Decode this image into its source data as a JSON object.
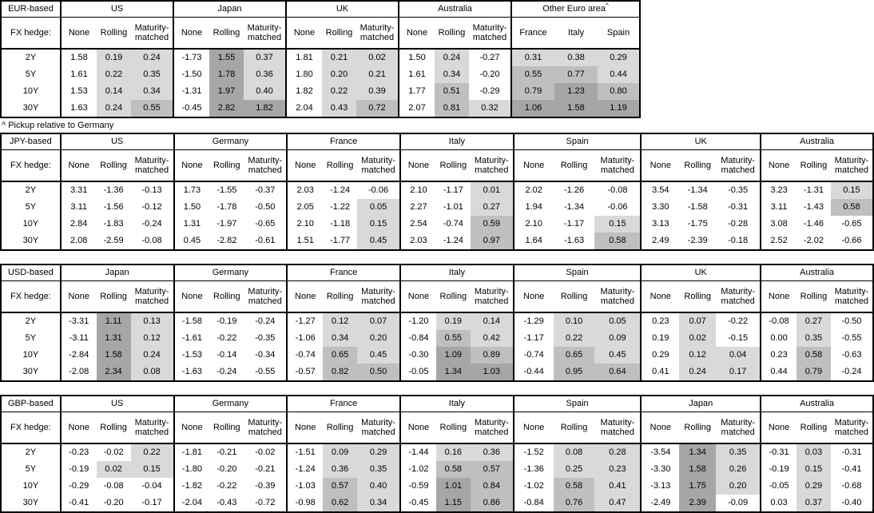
{
  "footnote": "^ Pickup relative to Germany",
  "fx_hedge_label": "FX hedge:",
  "row_labels": [
    "2Y",
    "5Y",
    "10Y",
    "30Y"
  ],
  "hedge_columns": [
    "None",
    "Rolling",
    "Maturity-matched"
  ],
  "shade_colors": {
    "low": "#d9d9d9",
    "mid": "#bfbfbf",
    "high": "#a6a6a6"
  },
  "shade_thresholds": {
    "low_min": 0,
    "mid_min": 0.5,
    "high_min": 1.0
  },
  "tables": [
    {
      "base": "EUR-based",
      "groups": [
        {
          "name": "US",
          "type": "hedge",
          "rows": [
            [
              "1.58",
              "0.19",
              "0.24"
            ],
            [
              "1.61",
              "0.22",
              "0.35"
            ],
            [
              "1.53",
              "0.14",
              "0.34"
            ],
            [
              "1.63",
              "0.24",
              "0.55"
            ]
          ]
        },
        {
          "name": "Japan",
          "type": "hedge",
          "rows": [
            [
              "-1.73",
              "1.55",
              "0.37"
            ],
            [
              "-1.50",
              "1.78",
              "0.36"
            ],
            [
              "-1.31",
              "1.97",
              "0.40"
            ],
            [
              "-0.45",
              "2.82",
              "1.82"
            ]
          ]
        },
        {
          "name": "UK",
          "type": "hedge",
          "rows": [
            [
              "1.81",
              "0.21",
              "0.02"
            ],
            [
              "1.80",
              "0.20",
              "0.21"
            ],
            [
              "1.82",
              "0.22",
              "0.39"
            ],
            [
              "2.04",
              "0.43",
              "0.72"
            ]
          ]
        },
        {
          "name": "Australia",
          "type": "hedge",
          "rows": [
            [
              "1.50",
              "0.24",
              "-0.27"
            ],
            [
              "1.61",
              "0.34",
              "-0.20"
            ],
            [
              "1.77",
              "0.51",
              "-0.29"
            ],
            [
              "2.07",
              "0.81",
              "0.32"
            ]
          ]
        },
        {
          "name": "Other Euro area",
          "sup": "^",
          "type": "pickup",
          "columns": [
            "France",
            "Italy",
            "Spain"
          ],
          "rows": [
            [
              "0.31",
              "0.38",
              "0.29"
            ],
            [
              "0.55",
              "0.77",
              "0.44"
            ],
            [
              "0.79",
              "1.23",
              "0.80"
            ],
            [
              "1.06",
              "1.58",
              "1.19"
            ]
          ]
        }
      ]
    },
    {
      "base": "JPY-based",
      "groups": [
        {
          "name": "US",
          "type": "hedge",
          "rows": [
            [
              "3.31",
              "-1.36",
              "-0.13"
            ],
            [
              "3.11",
              "-1.56",
              "-0.12"
            ],
            [
              "2.84",
              "-1.83",
              "-0.24"
            ],
            [
              "2.08",
              "-2.59",
              "-0.08"
            ]
          ]
        },
        {
          "name": "Germany",
          "type": "hedge",
          "rows": [
            [
              "1.73",
              "-1.55",
              "-0.37"
            ],
            [
              "1.50",
              "-1.78",
              "-0.50"
            ],
            [
              "1.31",
              "-1.97",
              "-0.65"
            ],
            [
              "0.45",
              "-2.82",
              "-0.61"
            ]
          ]
        },
        {
          "name": "France",
          "type": "hedge",
          "rows": [
            [
              "2.03",
              "-1.24",
              "-0.06"
            ],
            [
              "2.05",
              "-1.22",
              "0.05"
            ],
            [
              "2.10",
              "-1.18",
              "0.15"
            ],
            [
              "1.51",
              "-1.77",
              "0.45"
            ]
          ]
        },
        {
          "name": "Italy",
          "type": "hedge",
          "rows": [
            [
              "2.10",
              "-1.17",
              "0.01"
            ],
            [
              "2.27",
              "-1.01",
              "0.27"
            ],
            [
              "2.54",
              "-0.74",
              "0.59"
            ],
            [
              "2.03",
              "-1.24",
              "0.97"
            ]
          ]
        },
        {
          "name": "Spain",
          "type": "hedge",
          "rows": [
            [
              "2.02",
              "-1.26",
              "-0.08"
            ],
            [
              "1.94",
              "-1.34",
              "-0.06"
            ],
            [
              "2.10",
              "-1.17",
              "0.15"
            ],
            [
              "1.64",
              "-1.63",
              "0.58"
            ]
          ]
        },
        {
          "name": "UK",
          "type": "hedge",
          "rows": [
            [
              "3.54",
              "-1.34",
              "-0.35"
            ],
            [
              "3.30",
              "-1.58",
              "-0.31"
            ],
            [
              "3.13",
              "-1.75",
              "-0.28"
            ],
            [
              "2.49",
              "-2.39",
              "-0.18"
            ]
          ]
        },
        {
          "name": "Australia",
          "type": "hedge",
          "rows": [
            [
              "3.23",
              "-1.31",
              "0.15"
            ],
            [
              "3.11",
              "-1.43",
              "0.58"
            ],
            [
              "3.08",
              "-1.46",
              "-0.65"
            ],
            [
              "2.52",
              "-2.02",
              "-0.66"
            ]
          ]
        }
      ]
    },
    {
      "base": "USD-based",
      "groups": [
        {
          "name": "Japan",
          "type": "hedge",
          "rows": [
            [
              "-3.31",
              "1.11",
              "0.13"
            ],
            [
              "-3.11",
              "1.31",
              "0.12"
            ],
            [
              "-2.84",
              "1.58",
              "0.24"
            ],
            [
              "-2.08",
              "2.34",
              "0.08"
            ]
          ]
        },
        {
          "name": "Germany",
          "type": "hedge",
          "rows": [
            [
              "-1.58",
              "-0.19",
              "-0.24"
            ],
            [
              "-1.61",
              "-0.22",
              "-0.35"
            ],
            [
              "-1.53",
              "-0.14",
              "-0.34"
            ],
            [
              "-1.63",
              "-0.24",
              "-0.55"
            ]
          ]
        },
        {
          "name": "France",
          "type": "hedge",
          "rows": [
            [
              "-1.27",
              "0.12",
              "0.07"
            ],
            [
              "-1.06",
              "0.34",
              "0.20"
            ],
            [
              "-0.74",
              "0.65",
              "0.45"
            ],
            [
              "-0.57",
              "0.82",
              "0.50"
            ]
          ]
        },
        {
          "name": "Italy",
          "type": "hedge",
          "rows": [
            [
              "-1.20",
              "0.19",
              "0.14"
            ],
            [
              "-0.84",
              "0.55",
              "0.42"
            ],
            [
              "-0.30",
              "1.09",
              "0.89"
            ],
            [
              "-0.05",
              "1.34",
              "1.03"
            ]
          ]
        },
        {
          "name": "Spain",
          "type": "hedge",
          "rows": [
            [
              "-1.29",
              "0.10",
              "0.05"
            ],
            [
              "-1.17",
              "0.22",
              "0.09"
            ],
            [
              "-0.74",
              "0.65",
              "0.45"
            ],
            [
              "-0.44",
              "0.95",
              "0.64"
            ]
          ]
        },
        {
          "name": "UK",
          "type": "hedge",
          "rows": [
            [
              "0.23",
              "0.07",
              "-0.22"
            ],
            [
              "0.19",
              "0.02",
              "-0.15"
            ],
            [
              "0.29",
              "0.12",
              "0.04"
            ],
            [
              "0.41",
              "0.24",
              "0.17"
            ]
          ]
        },
        {
          "name": "Australia",
          "type": "hedge",
          "rows": [
            [
              "-0.08",
              "0.27",
              "-0.50"
            ],
            [
              "0.00",
              "0.35",
              "-0.55"
            ],
            [
              "0.23",
              "0.58",
              "-0.63"
            ],
            [
              "0.44",
              "0.79",
              "-0.24"
            ]
          ]
        }
      ]
    },
    {
      "base": "GBP-based",
      "groups": [
        {
          "name": "US",
          "type": "hedge",
          "rows": [
            [
              "-0.23",
              "-0.02",
              "0.22"
            ],
            [
              "-0.19",
              "0.02",
              "0.15"
            ],
            [
              "-0.29",
              "-0.08",
              "-0.04"
            ],
            [
              "-0.41",
              "-0.20",
              "-0.17"
            ]
          ]
        },
        {
          "name": "Germany",
          "type": "hedge",
          "rows": [
            [
              "-1.81",
              "-0.21",
              "-0.02"
            ],
            [
              "-1.80",
              "-0.20",
              "-0.21"
            ],
            [
              "-1.82",
              "-0.22",
              "-0.39"
            ],
            [
              "-2.04",
              "-0.43",
              "-0.72"
            ]
          ]
        },
        {
          "name": "France",
          "type": "hedge",
          "rows": [
            [
              "-1.51",
              "0.09",
              "0.29"
            ],
            [
              "-1.24",
              "0.36",
              "0.35"
            ],
            [
              "-1.03",
              "0.57",
              "0.40"
            ],
            [
              "-0.98",
              "0.62",
              "0.34"
            ]
          ]
        },
        {
          "name": "Italy",
          "type": "hedge",
          "rows": [
            [
              "-1.44",
              "0.16",
              "0.36"
            ],
            [
              "-1.02",
              "0.58",
              "0.57"
            ],
            [
              "-0.59",
              "1.01",
              "0.84"
            ],
            [
              "-0.45",
              "1.15",
              "0.86"
            ]
          ]
        },
        {
          "name": "Spain",
          "type": "hedge",
          "rows": [
            [
              "-1.52",
              "0.08",
              "0.28"
            ],
            [
              "-1.36",
              "0.25",
              "0.23"
            ],
            [
              "-1.02",
              "0.58",
              "0.41"
            ],
            [
              "-0.84",
              "0.76",
              "0.47"
            ]
          ]
        },
        {
          "name": "Japan",
          "type": "hedge",
          "rows": [
            [
              "-3.54",
              "1.34",
              "0.35"
            ],
            [
              "-3.30",
              "1.58",
              "0.26"
            ],
            [
              "-3.13",
              "1.75",
              "0.20"
            ],
            [
              "-2.49",
              "2.39",
              "-0.09"
            ]
          ]
        },
        {
          "name": "Australia",
          "type": "hedge",
          "rows": [
            [
              "-0.31",
              "0.03",
              "-0.31"
            ],
            [
              "-0.19",
              "0.15",
              "-0.41"
            ],
            [
              "-0.05",
              "0.29",
              "-0.68"
            ],
            [
              "0.03",
              "0.37",
              "-0.40"
            ]
          ]
        }
      ]
    }
  ]
}
